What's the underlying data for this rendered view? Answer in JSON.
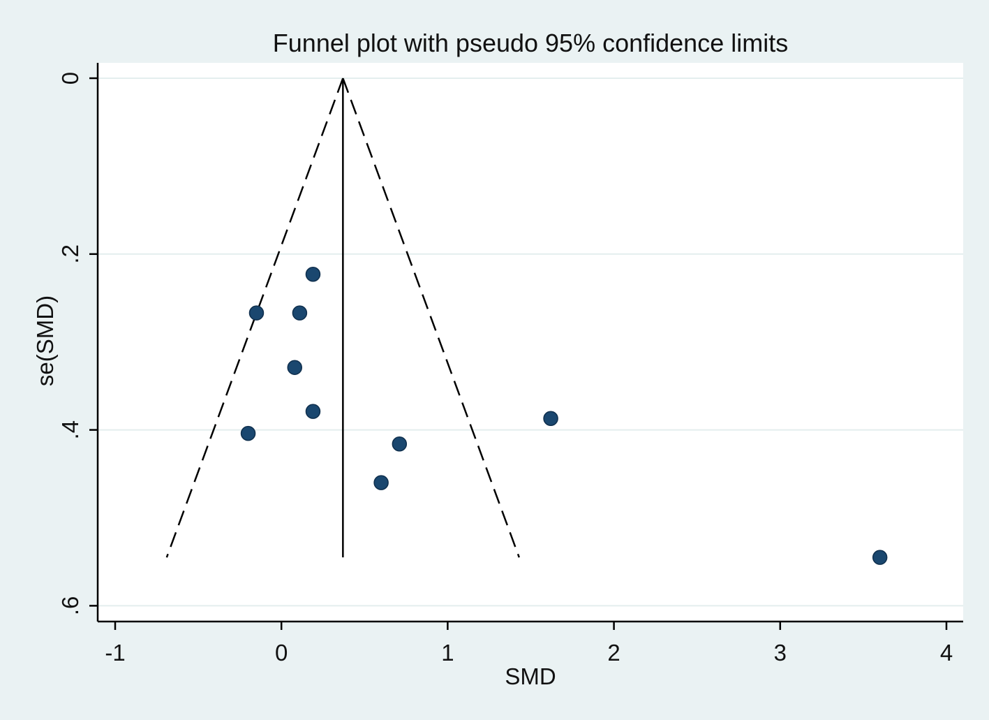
{
  "chart_data": {
    "type": "scatter",
    "title": "Funnel plot with pseudo 95% confidence limits",
    "xlabel": "SMD",
    "ylabel": "se(SMD)",
    "xlim": [
      -1.05,
      4.1
    ],
    "ylim": [
      0,
      0.6
    ],
    "y_axis_inverted": true,
    "grid": "horizontal",
    "x_ticks": [
      -1,
      0,
      1,
      2,
      3,
      4
    ],
    "x_tick_labels": [
      "-1",
      "0",
      "1",
      "2",
      "3",
      "4"
    ],
    "y_ticks": [
      0,
      0.2,
      0.4,
      0.6
    ],
    "y_tick_labels": [
      "0",
      ".2",
      ".4",
      ".6"
    ],
    "pooled_effect": 0.37,
    "funnel": {
      "apex": [
        0.37,
        0
      ],
      "lower_left": [
        -0.69,
        0.545
      ],
      "upper_right": [
        1.43,
        0.545
      ],
      "style": "dashed"
    },
    "pooled_line": {
      "x": 0.37,
      "y_from": 0,
      "y_to": 0.545,
      "style": "solid"
    },
    "points": [
      {
        "x": 0.19,
        "y": 0.223
      },
      {
        "x": -0.15,
        "y": 0.267
      },
      {
        "x": 0.11,
        "y": 0.267
      },
      {
        "x": 0.08,
        "y": 0.329
      },
      {
        "x": 0.19,
        "y": 0.379
      },
      {
        "x": -0.2,
        "y": 0.404
      },
      {
        "x": 1.62,
        "y": 0.387
      },
      {
        "x": 0.71,
        "y": 0.416
      },
      {
        "x": 0.6,
        "y": 0.46
      },
      {
        "x": 3.6,
        "y": 0.545
      }
    ],
    "colors": {
      "background": "#eaf2f3",
      "plot_area": "#ffffff",
      "gridline": "#e4eeee",
      "marker_fill": "#1a476f",
      "marker_edge": "#0f2f4d",
      "line": "#000000"
    }
  }
}
